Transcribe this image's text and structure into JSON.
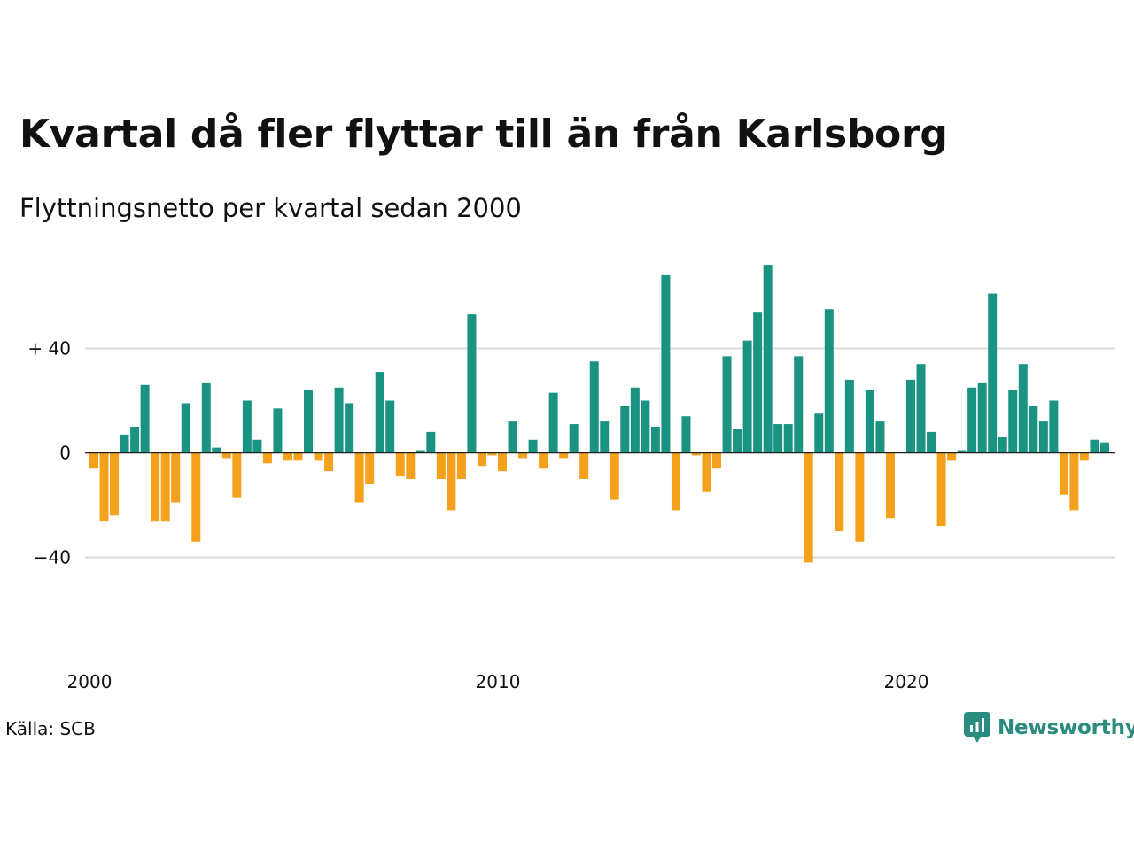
{
  "source": "Källa: SCB",
  "brand": {
    "name": "Newsworthy"
  },
  "colors": {
    "positive": "#1a9382",
    "negative": "#f6a11c",
    "grid": "#dddddd",
    "zero_line": "#222222",
    "brand": "#2a8c7e"
  },
  "chart_data": {
    "type": "bar",
    "title": "Kvartal då fler flyttar till än från Karlsborg",
    "subtitle": "Flyttningsnetto per kvartal sedan 2000",
    "xlabel": "",
    "ylabel": "",
    "x_start": "2000Q1",
    "ylim": [
      -60,
      75
    ],
    "y_ticks": [
      {
        "value": 40,
        "label": "+ 40"
      },
      {
        "value": 0,
        "label": "0"
      },
      {
        "value": -40,
        "label": "−40"
      }
    ],
    "x_ticks": [
      {
        "index": 0,
        "label": "2000"
      },
      {
        "index": 40,
        "label": "2010"
      },
      {
        "index": 80,
        "label": "2020"
      }
    ],
    "grid": true,
    "legend": "none",
    "values": [
      -6,
      -26,
      -24,
      7,
      10,
      26,
      -26,
      -26,
      -19,
      19,
      -34,
      27,
      2,
      -2,
      -17,
      20,
      5,
      -4,
      17,
      -3,
      -3,
      24,
      -3,
      -7,
      25,
      19,
      -19,
      -12,
      31,
      20,
      -9,
      -10,
      1,
      8,
      -10,
      -22,
      -10,
      53,
      -5,
      -1,
      -7,
      12,
      -2,
      5,
      -6,
      23,
      -2,
      11,
      -10,
      35,
      12,
      -18,
      18,
      25,
      20,
      10,
      68,
      -22,
      14,
      -1,
      -15,
      -6,
      37,
      9,
      43,
      54,
      72,
      11,
      11,
      37,
      -42,
      15,
      55,
      -30,
      28,
      -34,
      24,
      12,
      -25,
      0,
      28,
      34,
      8,
      -28,
      -3,
      1,
      25,
      27,
      61,
      6,
      24,
      34,
      18,
      12,
      20,
      -16,
      -22,
      -3,
      5,
      4
    ]
  }
}
